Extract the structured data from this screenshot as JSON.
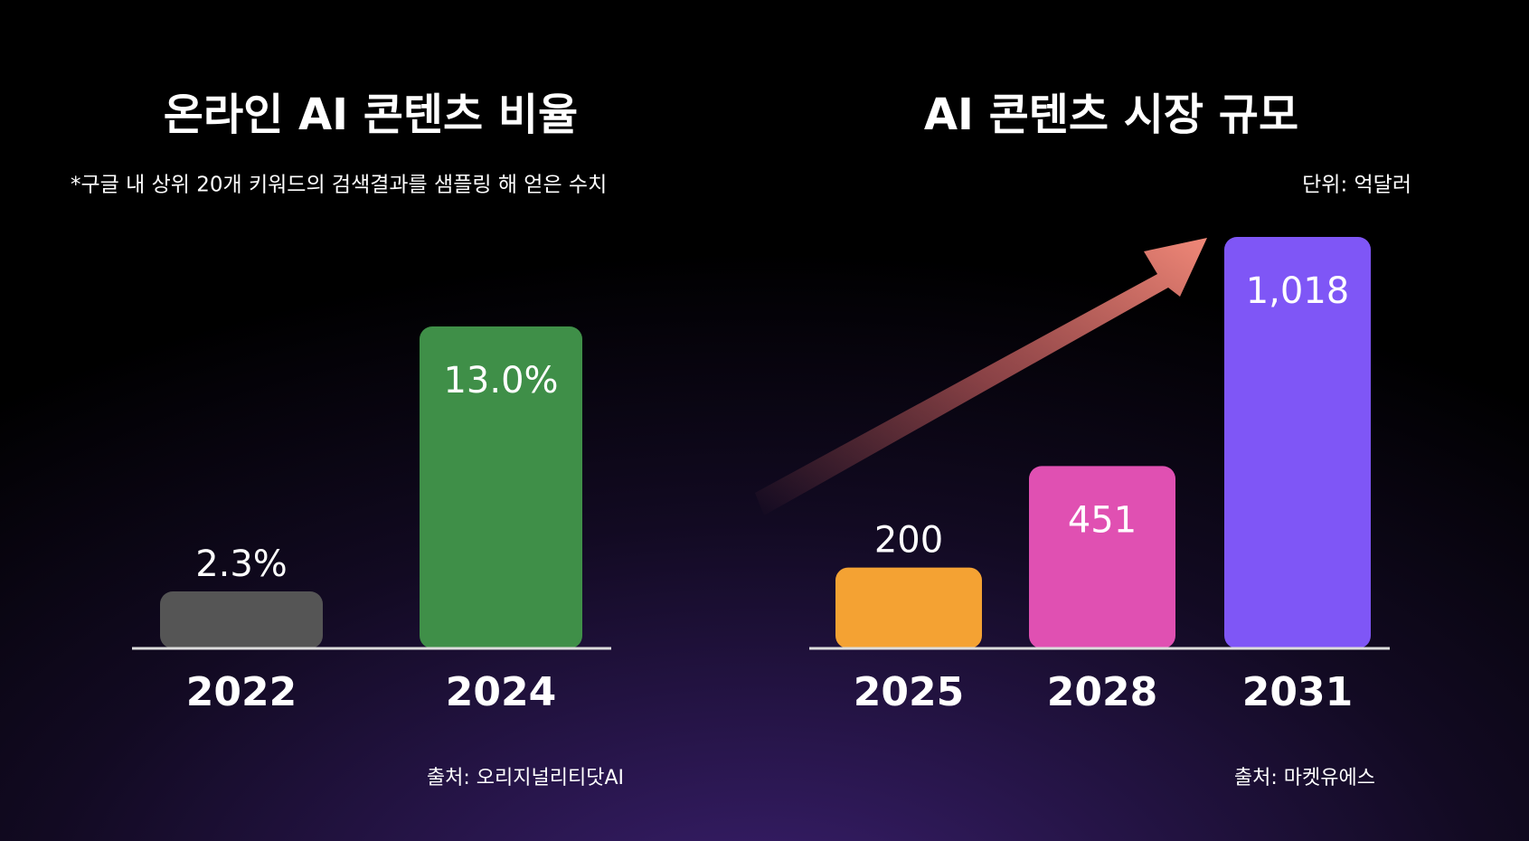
{
  "chart_data": [
    {
      "type": "bar",
      "title": "온라인 AI 콘텐츠 비율",
      "subtitle": "*구글 내 상위 20개 키워드의 검색결과를 샘플링 해 얻은 수치",
      "categories": [
        "2022",
        "2024"
      ],
      "values": [
        2.3,
        13.0
      ],
      "value_labels": [
        "2.3%",
        "13.0%"
      ],
      "colors": [
        "#555555",
        "#3f8f48"
      ],
      "source": "출처: 오리지널리티닷AI"
    },
    {
      "type": "bar",
      "title": "AI 콘텐츠 시장 규모",
      "unit": "단위: 억달러",
      "categories": [
        "2025",
        "2028",
        "2031"
      ],
      "values": [
        200,
        451,
        1018
      ],
      "value_labels": [
        "200",
        "451",
        "1,018"
      ],
      "colors": [
        "#f4a233",
        "#e050b2",
        "#7f56f6"
      ],
      "source": "출처: 마켓유에스"
    }
  ]
}
